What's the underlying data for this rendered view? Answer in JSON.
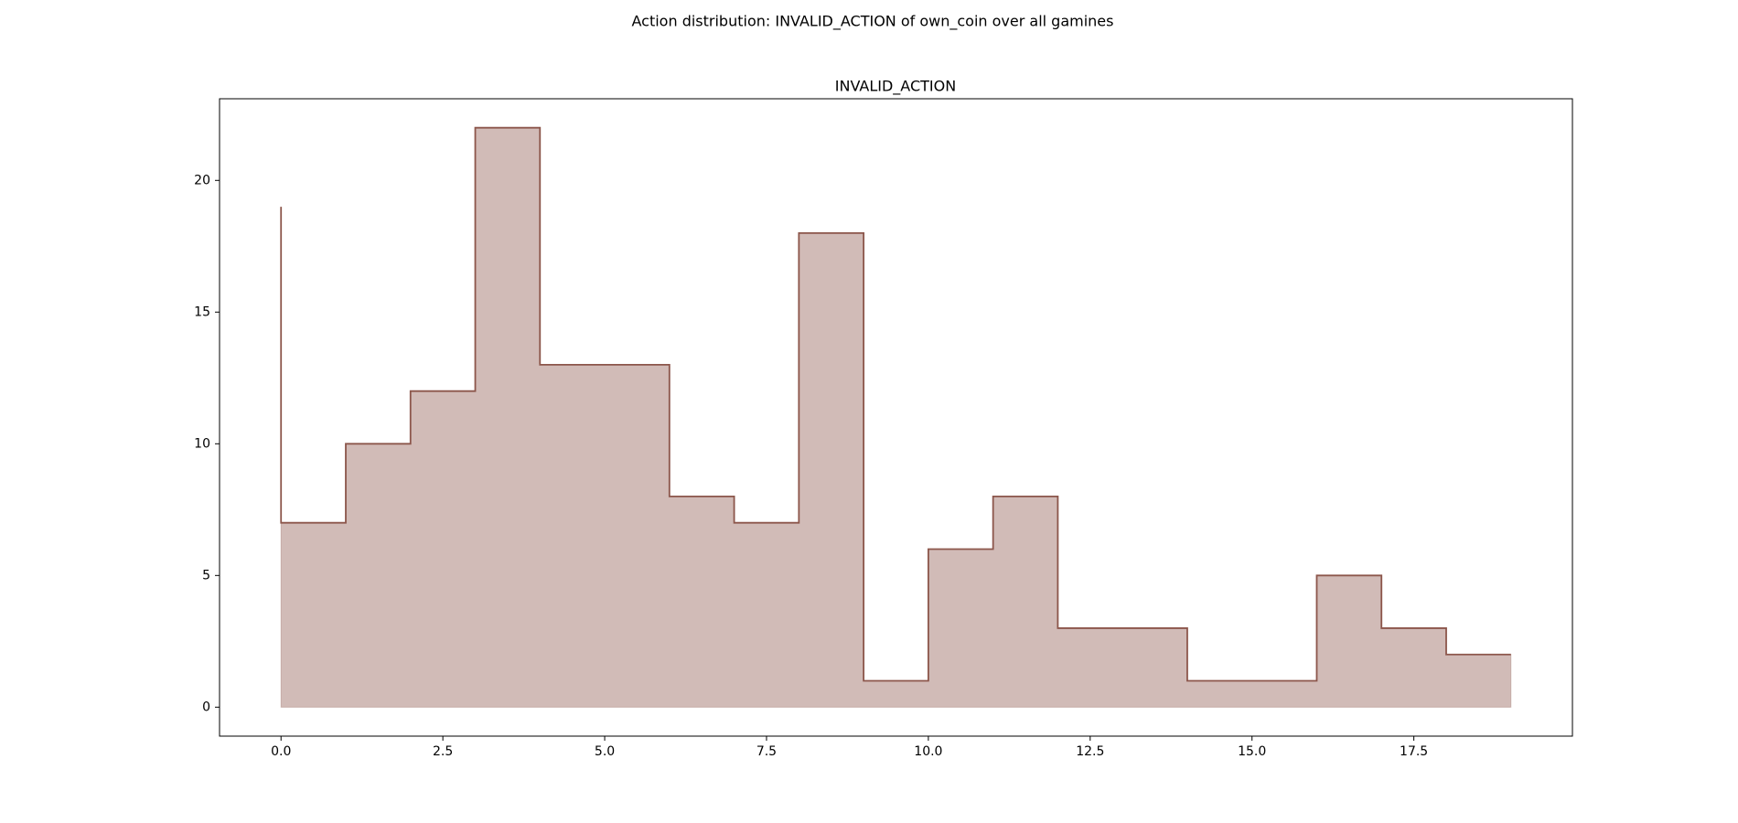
{
  "chart_data": {
    "type": "step",
    "step": "pre",
    "suptitle": "Action distribution: INVALID_ACTION of own_coin over all gamines",
    "title": "INVALID_ACTION",
    "x": [
      0,
      1,
      2,
      3,
      4,
      5,
      6,
      7,
      8,
      9,
      10,
      11,
      12,
      13,
      14,
      15,
      16,
      17,
      18,
      19
    ],
    "values": [
      19,
      7,
      10,
      12,
      22,
      13,
      13,
      8,
      7,
      18,
      1,
      6,
      8,
      3,
      3,
      1,
      1,
      5,
      3,
      2
    ],
    "color": "#8c564b",
    "fill": true,
    "xlim": [
      -0.95,
      19.95
    ],
    "xticks": [
      {
        "value": 0,
        "label": "0.0"
      },
      {
        "value": 2.5,
        "label": "2.5"
      },
      {
        "value": 5,
        "label": "5.0"
      },
      {
        "value": 7.5,
        "label": "7.5"
      },
      {
        "value": 10,
        "label": "10.0"
      },
      {
        "value": 12.5,
        "label": "12.5"
      },
      {
        "value": 15,
        "label": "15.0"
      },
      {
        "value": 17.5,
        "label": "17.5"
      }
    ],
    "ylim": [
      -1.1,
      23.1
    ],
    "yticks": [
      0,
      5,
      10,
      15,
      20
    ]
  }
}
